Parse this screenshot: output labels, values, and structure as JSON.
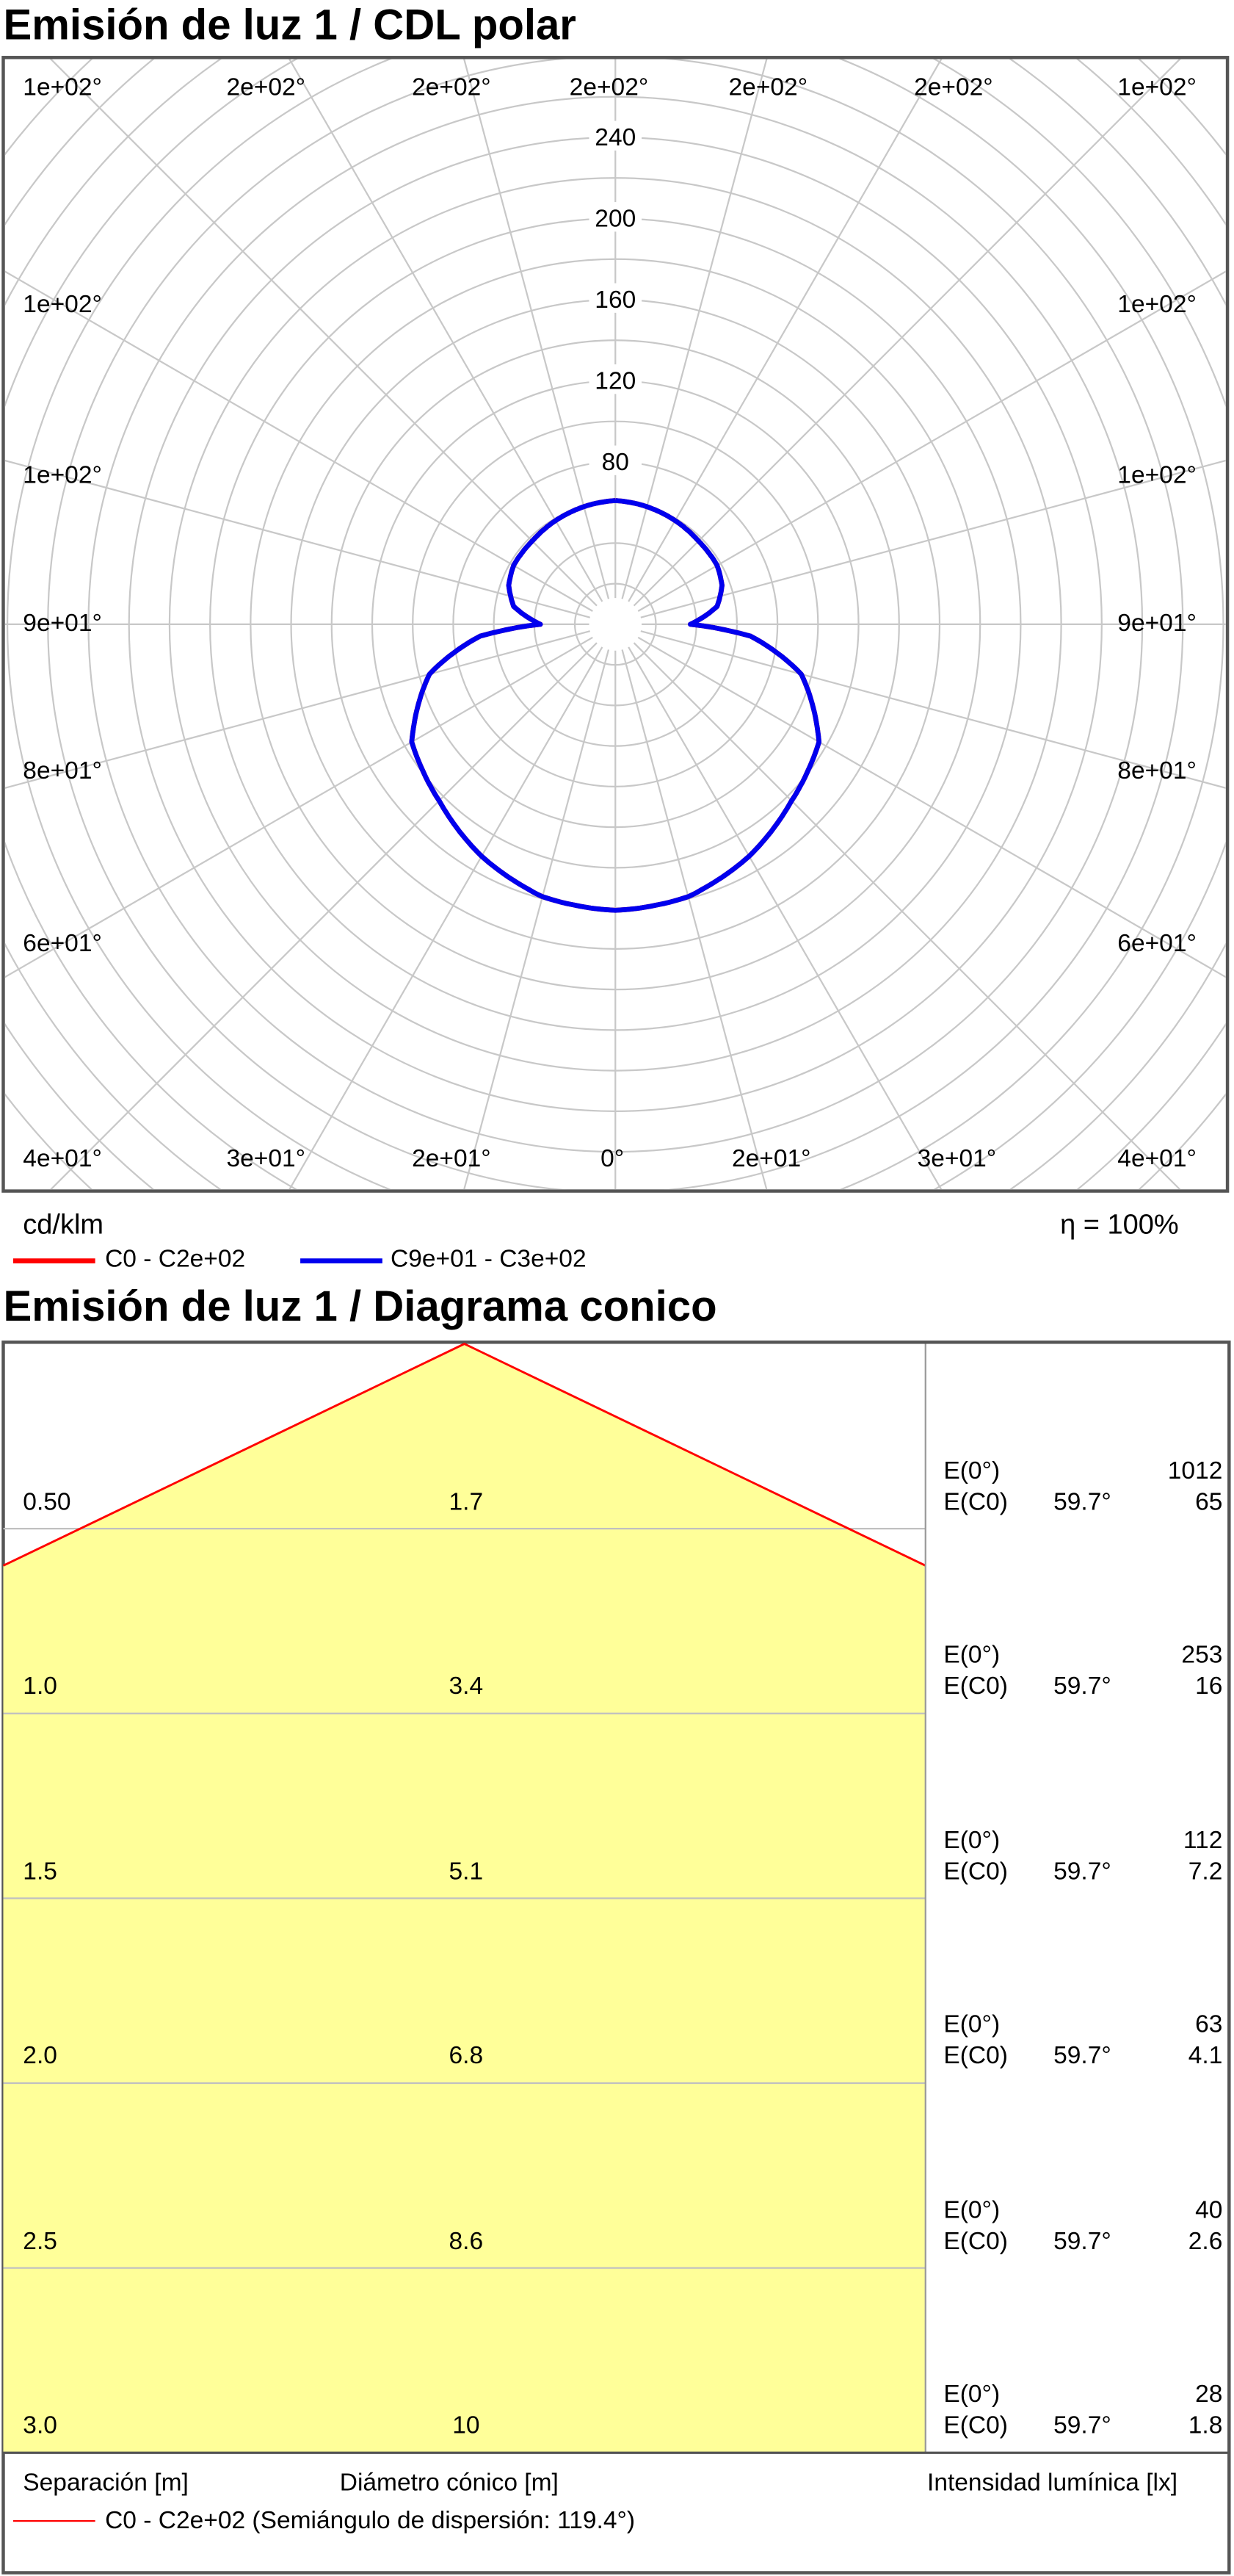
{
  "polar": {
    "title": "Emisión de luz 1 / CDL polar",
    "unit_label": "cd/klm",
    "efficiency_label": "η = 100%",
    "legend": [
      {
        "label": "C0 - C2e+02",
        "color": "#ff0000"
      },
      {
        "label": "C9e+01 - C3e+02",
        "color": "#0000ee"
      }
    ],
    "angle_labels": {
      "top": [
        "1e+02°",
        "2e+02°",
        "2e+02°",
        "2e+02°",
        "2e+02°",
        "2e+02°",
        "1e+02°"
      ],
      "left": [
        "1e+02°",
        "1e+02°",
        "9e+01°",
        "8e+01°",
        "6e+01°"
      ],
      "right": [
        "1e+02°",
        "1e+02°",
        "9e+01°",
        "8e+01°",
        "6e+01°"
      ],
      "bottom": [
        "4e+01°",
        "3e+01°",
        "2e+01°",
        "0°",
        "2e+01°",
        "3e+01°",
        "4e+01°"
      ]
    }
  },
  "chart_data": [
    {
      "type": "polar",
      "title": "Emisión de luz 1 / CDL polar",
      "r_unit": "cd/klm",
      "r_ticks": [
        80,
        120,
        160,
        200,
        240
      ],
      "r_max": 280,
      "series": [
        {
          "name": "C9e+01 - C3e+02",
          "color": "#0000ee",
          "gamma_deg": [
            0,
            15,
            30,
            45,
            60,
            75,
            85,
            90,
            95,
            100,
            110,
            120,
            135,
            150,
            165,
            180
          ],
          "intensity_cd_klm": [
            141,
            139,
            132,
            123,
            116,
            95,
            67,
            37,
            44,
            51,
            56,
            58,
            58,
            59,
            60,
            61
          ]
        },
        {
          "name": "C0 - C2e+02",
          "color": "#ff0000",
          "gamma_deg": [
            0,
            15,
            30,
            45,
            60,
            75,
            85,
            90,
            95,
            100,
            110,
            120,
            135,
            150,
            165,
            180
          ],
          "intensity_cd_klm": [
            141,
            139,
            132,
            123,
            116,
            95,
            67,
            37,
            44,
            51,
            56,
            58,
            58,
            59,
            60,
            61
          ]
        }
      ]
    },
    {
      "type": "table",
      "title": "Emisión de luz 1 / Diagrama conico",
      "half_angle_deg": 119.4,
      "rows": [
        {
          "separation": "0.50",
          "diameter": "1.7",
          "e0_label": "E(0°)",
          "e0": "1012",
          "ec0_label": "E(C0)",
          "angle": "59.7°",
          "ec0": "65"
        },
        {
          "separation": "1.0",
          "diameter": "3.4",
          "e0_label": "E(0°)",
          "e0": "253",
          "ec0_label": "E(C0)",
          "angle": "59.7°",
          "ec0": "16"
        },
        {
          "separation": "1.5",
          "diameter": "5.1",
          "e0_label": "E(0°)",
          "e0": "112",
          "ec0_label": "E(C0)",
          "angle": "59.7°",
          "ec0": "7.2"
        },
        {
          "separation": "2.0",
          "diameter": "6.8",
          "e0_label": "E(0°)",
          "e0": "63",
          "ec0_label": "E(C0)",
          "angle": "59.7°",
          "ec0": "4.1"
        },
        {
          "separation": "2.5",
          "diameter": "8.6",
          "e0_label": "E(0°)",
          "e0": "40",
          "ec0_label": "E(C0)",
          "angle": "59.7°",
          "ec0": "2.6"
        },
        {
          "separation": "3.0",
          "diameter": "10",
          "e0_label": "E(0°)",
          "e0": "28",
          "ec0_label": "E(C0)",
          "angle": "59.7°",
          "ec0": "1.8"
        }
      ]
    }
  ],
  "cone": {
    "title": "Emisión de luz 1 / Diagrama conico",
    "footer": {
      "separation": "Separación [m]",
      "diameter": "Diámetro cónico [m]",
      "intensity": "Intensidad lumínica [lx]"
    },
    "legend": {
      "label": "C0 - C2e+02 (Semiángulo de dispersión: 119.4°)",
      "color": "#ff0000"
    },
    "fill_color": "#ffff99"
  }
}
